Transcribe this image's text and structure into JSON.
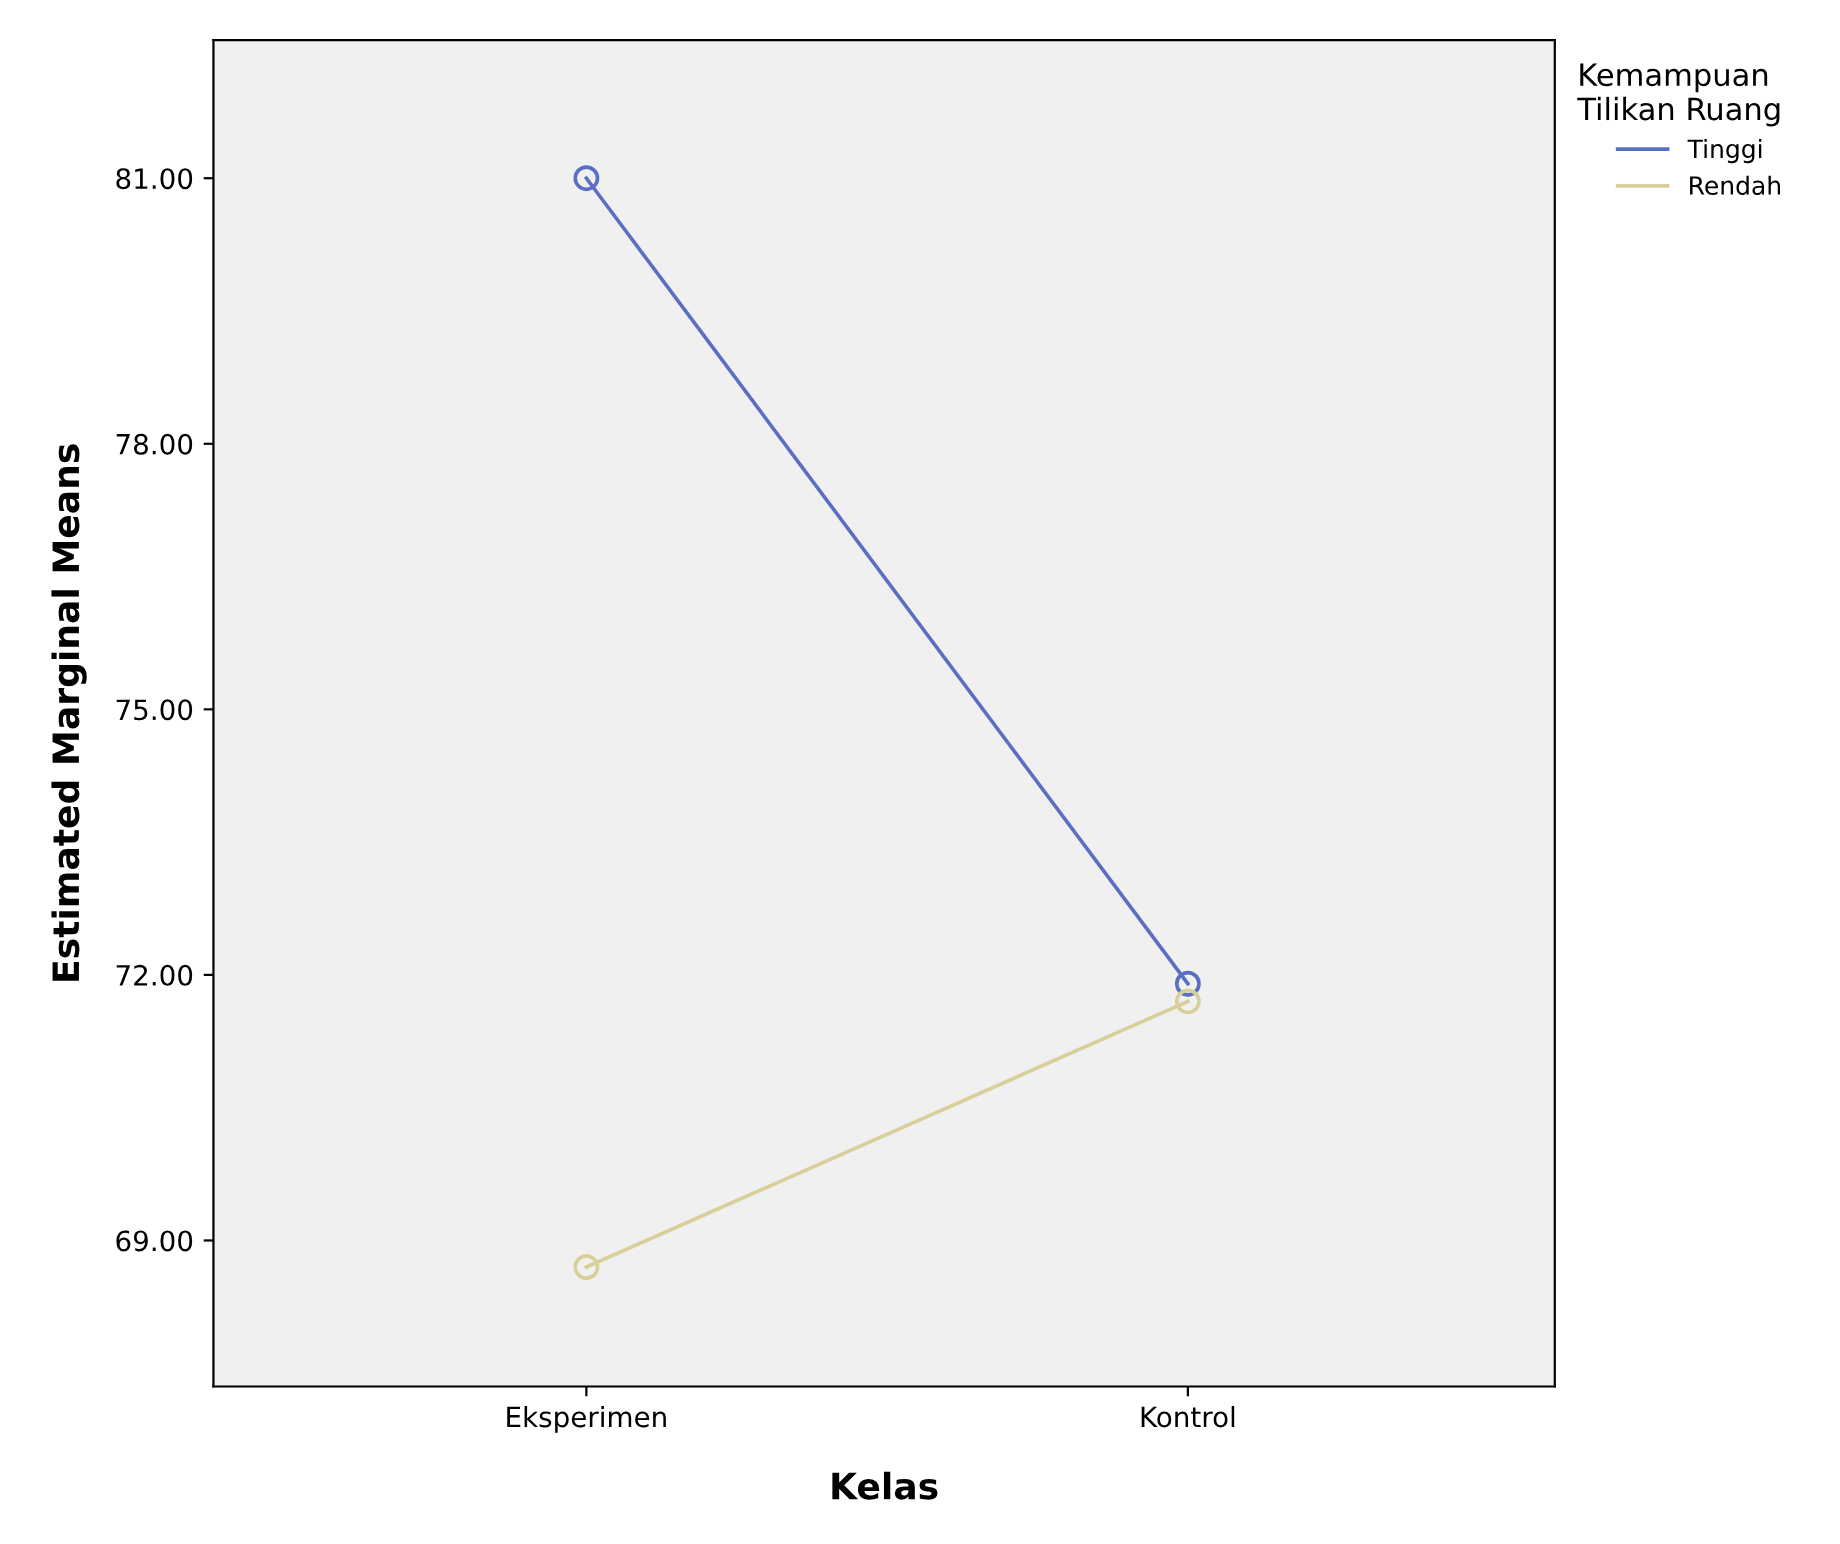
{
  "chart_data": {
    "type": "line",
    "xlabel": "Kelas",
    "ylabel": "Estimated Marginal Means",
    "legend_title": "Kemampuan\nTilikan Ruang",
    "categories": [
      "Eksperimen",
      "Kontrol"
    ],
    "series": [
      {
        "name": "Tinggi",
        "color": "#5a6fc4",
        "values": [
          81.0,
          71.9
        ]
      },
      {
        "name": "Rendah",
        "color": "#d8d09a",
        "values": [
          68.7,
          71.7
        ]
      }
    ],
    "ylim": [
      67.35,
      82.56
    ],
    "yticks": [
      {
        "value": 69,
        "label": "69.00"
      },
      {
        "value": 72,
        "label": "72.00"
      },
      {
        "value": 75,
        "label": "75.00"
      },
      {
        "value": 78,
        "label": "78.00"
      },
      {
        "value": 81,
        "label": "81.00"
      }
    ],
    "marker": "circle",
    "line_style": "solid",
    "legend": "top right",
    "grid": false
  }
}
